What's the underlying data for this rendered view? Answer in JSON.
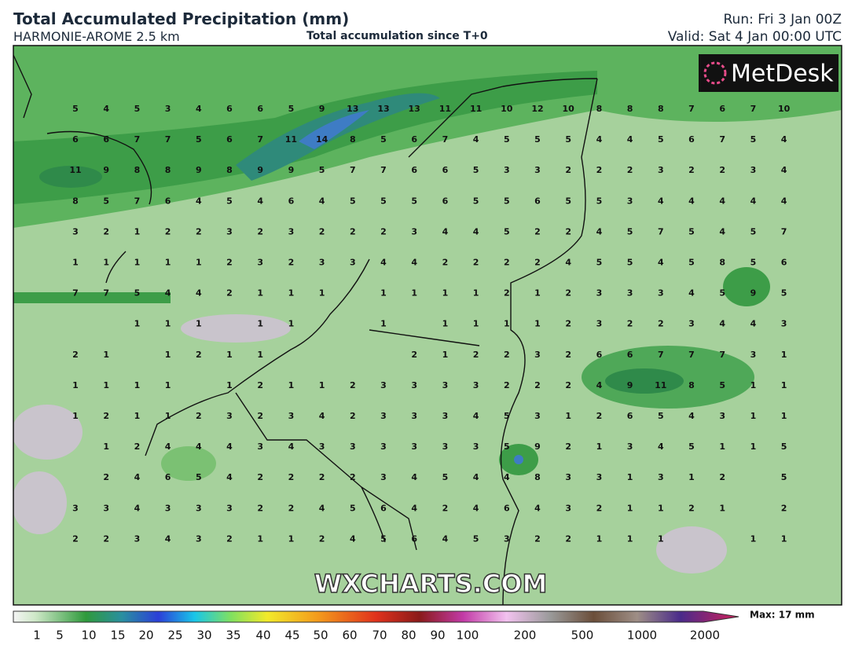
{
  "header": {
    "title": "Total Accumulated Precipitation (mm)",
    "model": "HARMONIE-AROME 2.5 km",
    "subtitle": "Total accumulation since T+0",
    "run": "Run: Fri 3 Jan 00Z",
    "valid": "Valid: Sat 4 Jan 00:00 UTC"
  },
  "map": {
    "logo": "MetDesk",
    "watermark": "WXCHARTS.COM",
    "grid_values": [
      [
        5,
        4,
        5,
        3,
        4,
        6,
        6,
        5,
        9,
        13,
        13,
        13,
        11,
        11,
        10,
        12,
        10,
        8,
        8,
        8,
        7,
        6,
        7,
        10
      ],
      [
        6,
        6,
        7,
        7,
        5,
        6,
        7,
        11,
        14,
        8,
        5,
        6,
        7,
        4,
        5,
        5,
        5,
        4,
        4,
        5,
        6,
        7,
        5,
        4
      ],
      [
        11,
        9,
        8,
        8,
        9,
        8,
        9,
        9,
        5,
        7,
        7,
        6,
        6,
        5,
        3,
        3,
        2,
        2,
        2,
        3,
        2,
        2,
        3,
        4
      ],
      [
        8,
        5,
        7,
        6,
        4,
        5,
        4,
        6,
        4,
        5,
        5,
        5,
        6,
        5,
        5,
        6,
        5,
        5,
        3,
        4,
        4,
        4,
        4,
        4
      ],
      [
        3,
        2,
        1,
        2,
        2,
        3,
        2,
        3,
        2,
        2,
        2,
        3,
        4,
        4,
        5,
        2,
        2,
        4,
        5,
        7,
        5,
        4,
        5,
        7
      ],
      [
        1,
        1,
        1,
        1,
        1,
        2,
        3,
        2,
        3,
        3,
        4,
        4,
        2,
        2,
        2,
        2,
        4,
        5,
        5,
        4,
        5,
        8,
        5,
        6
      ],
      [
        7,
        7,
        5,
        4,
        4,
        2,
        1,
        1,
        1,
        null,
        1,
        1,
        1,
        1,
        2,
        1,
        2,
        3,
        3,
        3,
        4,
        5,
        9,
        5
      ],
      [
        null,
        null,
        1,
        1,
        1,
        null,
        1,
        1,
        null,
        null,
        1,
        null,
        1,
        1,
        1,
        1,
        2,
        3,
        2,
        2,
        3,
        4,
        4,
        3
      ],
      [
        2,
        1,
        null,
        1,
        2,
        1,
        1,
        null,
        null,
        null,
        null,
        2,
        1,
        2,
        2,
        3,
        2,
        6,
        6,
        7,
        7,
        7,
        3,
        1
      ],
      [
        1,
        1,
        1,
        1,
        null,
        1,
        2,
        1,
        1,
        2,
        3,
        3,
        3,
        3,
        2,
        2,
        2,
        4,
        9,
        11,
        8,
        5,
        1,
        1
      ],
      [
        1,
        2,
        1,
        1,
        2,
        3,
        2,
        3,
        4,
        2,
        3,
        3,
        3,
        4,
        5,
        3,
        1,
        2,
        6,
        5,
        4,
        3,
        1,
        1
      ],
      [
        null,
        1,
        2,
        4,
        4,
        4,
        3,
        4,
        3,
        3,
        3,
        3,
        3,
        3,
        5,
        9,
        2,
        1,
        3,
        4,
        5,
        1,
        1,
        5
      ],
      [
        null,
        2,
        4,
        6,
        5,
        4,
        2,
        2,
        2,
        2,
        3,
        4,
        5,
        4,
        4,
        8,
        3,
        3,
        1,
        3,
        1,
        2,
        null,
        5
      ],
      [
        3,
        3,
        4,
        3,
        3,
        3,
        2,
        2,
        4,
        5,
        6,
        4,
        2,
        4,
        6,
        4,
        3,
        2,
        1,
        1,
        2,
        1,
        null,
        2
      ],
      [
        2,
        2,
        3,
        4,
        3,
        2,
        1,
        1,
        2,
        4,
        5,
        6,
        4,
        5,
        3,
        2,
        2,
        1,
        1,
        1,
        null,
        null,
        1,
        1
      ]
    ]
  },
  "legend": {
    "ticks": [
      1,
      5,
      10,
      15,
      20,
      25,
      30,
      35,
      40,
      45,
      50,
      60,
      70,
      80,
      90,
      100,
      200,
      500,
      1000,
      2000
    ],
    "max_label": "Max: 17 mm"
  }
}
